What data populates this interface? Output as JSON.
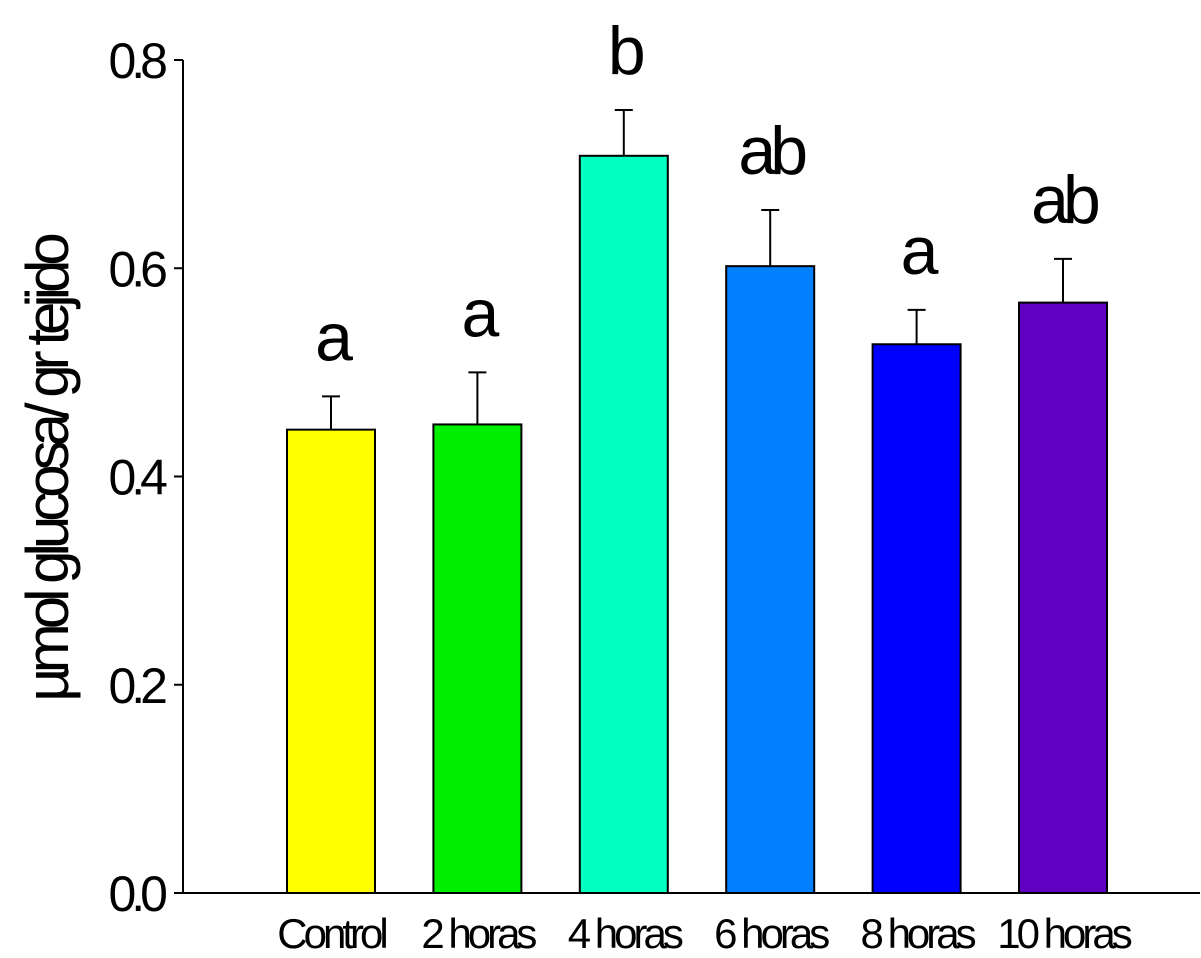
{
  "chart_data": {
    "type": "bar",
    "title": "",
    "xlabel": "",
    "ylabel": "µmol glucosa/ gr tejido",
    "ylim": [
      0,
      0.8
    ],
    "yticks": [
      "0.0",
      "0.2",
      "0.4",
      "0.6",
      "0.8"
    ],
    "categories": [
      "Control",
      "2 horas",
      "4 horas",
      "6 horas",
      "8 horas",
      "10 horas"
    ],
    "values": [
      0.445,
      0.45,
      0.708,
      0.602,
      0.527,
      0.567
    ],
    "errors": [
      0.032,
      0.05,
      0.044,
      0.054,
      0.033,
      0.042
    ],
    "significance": [
      "a",
      "a",
      "b",
      "ab",
      "a",
      "ab"
    ],
    "colors": [
      "#ffff00",
      "#00ee00",
      "#00ffc0",
      "#0080ff",
      "#0000ff",
      "#6000c0"
    ],
    "grid": false,
    "legend": "none"
  }
}
